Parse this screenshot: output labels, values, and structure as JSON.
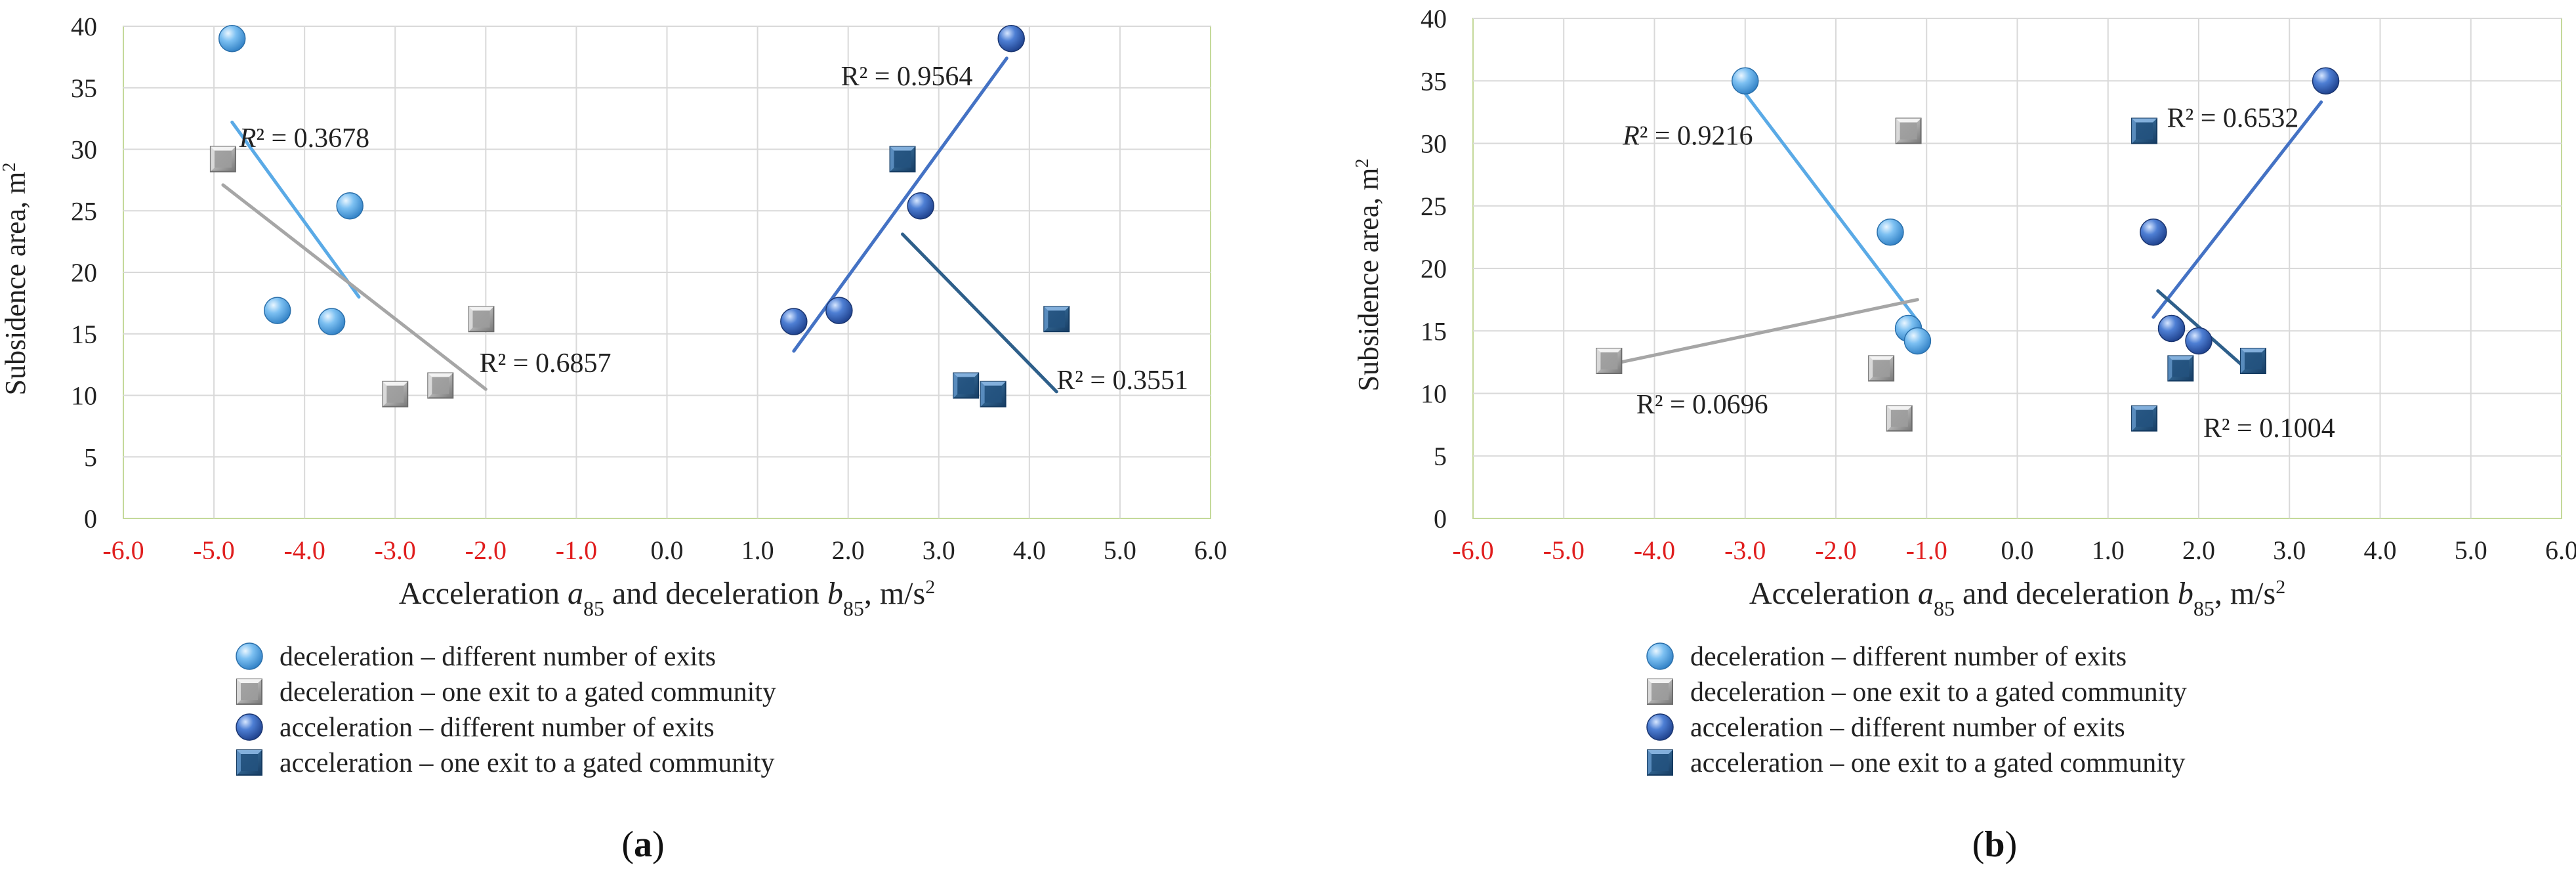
{
  "chart_data": [
    {
      "type": "scatter",
      "panel_label": "a",
      "title": "",
      "xlabel": {
        "main": "Acceleration ",
        "a": "a",
        "a_sub": "85",
        "mid": " and deceleration ",
        "b": "b",
        "b_sub": "85",
        "unit": ", m/s",
        "unit_sup": "2"
      },
      "ylabel": {
        "main": "Subsidence area, m",
        "sup": "2"
      },
      "xlim": [
        -6,
        6
      ],
      "ylim": [
        0,
        40
      ],
      "xticks": [
        "-6.0",
        "-5.0",
        "-4.0",
        "-3.0",
        "-2.0",
        "-1.0",
        "0.0",
        "1.0",
        "2.0",
        "3.0",
        "4.0",
        "5.0",
        "6.0"
      ],
      "xtick_values": [
        -6,
        -5,
        -4,
        -3,
        -2,
        -1,
        0,
        1,
        2,
        3,
        4,
        5,
        6
      ],
      "negative_tick_color": "#e01e1e",
      "yticks": [
        "0",
        "5",
        "10",
        "15",
        "20",
        "25",
        "30",
        "35",
        "40"
      ],
      "ytick_values": [
        0,
        5,
        10,
        15,
        20,
        25,
        30,
        35,
        40
      ],
      "grid": true,
      "series": [
        {
          "name": "deceleration – different number of exits",
          "marker": "sphere",
          "color": "#5aaae6",
          "points": [
            [
              -4.8,
              39
            ],
            [
              -4.3,
              16.9
            ],
            [
              -3.7,
              16
            ],
            [
              -3.5,
              25.4
            ]
          ],
          "trend": [
            [
              -4.8,
              32.2
            ],
            [
              -3.4,
              18
            ]
          ],
          "r2_text": "R² = 0.3678",
          "r2_italic_R": true,
          "r2_at": [
            -4.72,
            30.2
          ]
        },
        {
          "name": "deceleration – one exit to a gated community",
          "marker": "cube-grey",
          "color": "#a6a6a6",
          "points": [
            [
              -4.9,
              29.2
            ],
            [
              -3.0,
              10.1
            ],
            [
              -2.5,
              10.8
            ],
            [
              -2.05,
              16.2
            ]
          ],
          "trend": [
            [
              -4.9,
              27.1
            ],
            [
              -2.0,
              10.5
            ]
          ],
          "r2_text": "R² = 0.6857",
          "r2_italic_R": false,
          "r2_at": [
            -2.07,
            11.9
          ]
        },
        {
          "name": "acceleration – different number of exits",
          "marker": "sphere-dark",
          "color": "#4472c4",
          "points": [
            [
              1.4,
              16
            ],
            [
              1.9,
              16.9
            ],
            [
              2.8,
              25.4
            ],
            [
              3.8,
              39
            ]
          ],
          "trend": [
            [
              1.4,
              13.6
            ],
            [
              3.75,
              37.4
            ]
          ],
          "r2_text": "R² = 0.9564",
          "r2_italic_R": false,
          "r2_at": [
            1.92,
            35.2
          ]
        },
        {
          "name": "acceleration – one exit to a gated community",
          "marker": "cube-blue",
          "color": "#2e5f8a",
          "points": [
            [
              2.6,
              29.2
            ],
            [
              3.3,
              10.8
            ],
            [
              3.6,
              10.1
            ],
            [
              4.3,
              16.2
            ]
          ],
          "trend": [
            [
              2.6,
              23.1
            ],
            [
              4.3,
              10.3
            ]
          ],
          "r2_text": "R² = 0.3551",
          "r2_italic_R": false,
          "r2_at": [
            4.3,
            10.5
          ]
        }
      ]
    },
    {
      "type": "scatter",
      "panel_label": "b",
      "title": "",
      "xlabel": {
        "main": "Acceleration ",
        "a": "a",
        "a_sub": "85",
        "mid": " and deceleration ",
        "b": "b",
        "b_sub": "85",
        "unit": ", m/s",
        "unit_sup": "2"
      },
      "ylabel": {
        "main": "Subsidence area, m",
        "sup": "2"
      },
      "xlim": [
        -6,
        6
      ],
      "ylim": [
        0,
        40
      ],
      "xticks": [
        "-6.0",
        "-5.0",
        "-4.0",
        "-3.0",
        "-2.0",
        "-1.0",
        "0.0",
        "1.0",
        "2.0",
        "3.0",
        "4.0",
        "5.0",
        "6.0"
      ],
      "xtick_values": [
        -6,
        -5,
        -4,
        -3,
        -2,
        -1,
        0,
        1,
        2,
        3,
        4,
        5,
        6
      ],
      "negative_tick_color": "#e01e1e",
      "yticks": [
        "0",
        "5",
        "10",
        "15",
        "20",
        "25",
        "30",
        "35",
        "40"
      ],
      "ytick_values": [
        0,
        5,
        10,
        15,
        20,
        25,
        30,
        35,
        40
      ],
      "grid": true,
      "series": [
        {
          "name": "deceleration – different number of exits",
          "marker": "sphere",
          "color": "#5aaae6",
          "points": [
            [
              -3.0,
              35
            ],
            [
              -1.4,
              22.9
            ],
            [
              -1.2,
              15.2
            ],
            [
              -1.1,
              14.2
            ]
          ],
          "trend": [
            [
              -3.0,
              34
            ],
            [
              -1.1,
              15.8
            ]
          ],
          "r2_text": "R² = 0.9216",
          "r2_italic_R": true,
          "r2_at": [
            -4.35,
            29.9
          ]
        },
        {
          "name": "deceleration – one exit to a gated community",
          "marker": "cube-grey",
          "color": "#a6a6a6",
          "points": [
            [
              -4.5,
              12.6
            ],
            [
              -1.5,
              12
            ],
            [
              -1.3,
              8
            ],
            [
              -1.2,
              31
            ]
          ],
          "trend": [
            [
              -4.5,
              12.3
            ],
            [
              -1.1,
              17.5
            ]
          ],
          "r2_text": "R² = 0.0696",
          "r2_italic_R": false,
          "r2_at": [
            -4.2,
            8.4
          ]
        },
        {
          "name": "acceleration – different number of exits",
          "marker": "sphere-dark",
          "color": "#4472c4",
          "points": [
            [
              1.5,
              22.9
            ],
            [
              1.7,
              15.2
            ],
            [
              2.0,
              14.2
            ],
            [
              3.4,
              35
            ]
          ],
          "trend": [
            [
              1.5,
              16.1
            ],
            [
              3.35,
              33.3
            ]
          ],
          "r2_text": "R² = 0.6532",
          "r2_italic_R": false,
          "r2_at": [
            1.65,
            31.3
          ]
        },
        {
          "name": "acceleration – one exit to a gated community",
          "marker": "cube-blue",
          "color": "#2e5f8a",
          "points": [
            [
              1.4,
              31
            ],
            [
              1.4,
              8
            ],
            [
              1.8,
              12
            ],
            [
              2.6,
              12.6
            ]
          ],
          "trend": [
            [
              1.55,
              18.2
            ],
            [
              2.55,
              11.8
            ]
          ],
          "r2_text": "R² = 0.1004",
          "r2_italic_R": false,
          "r2_at": [
            2.05,
            6.5
          ]
        }
      ]
    }
  ]
}
